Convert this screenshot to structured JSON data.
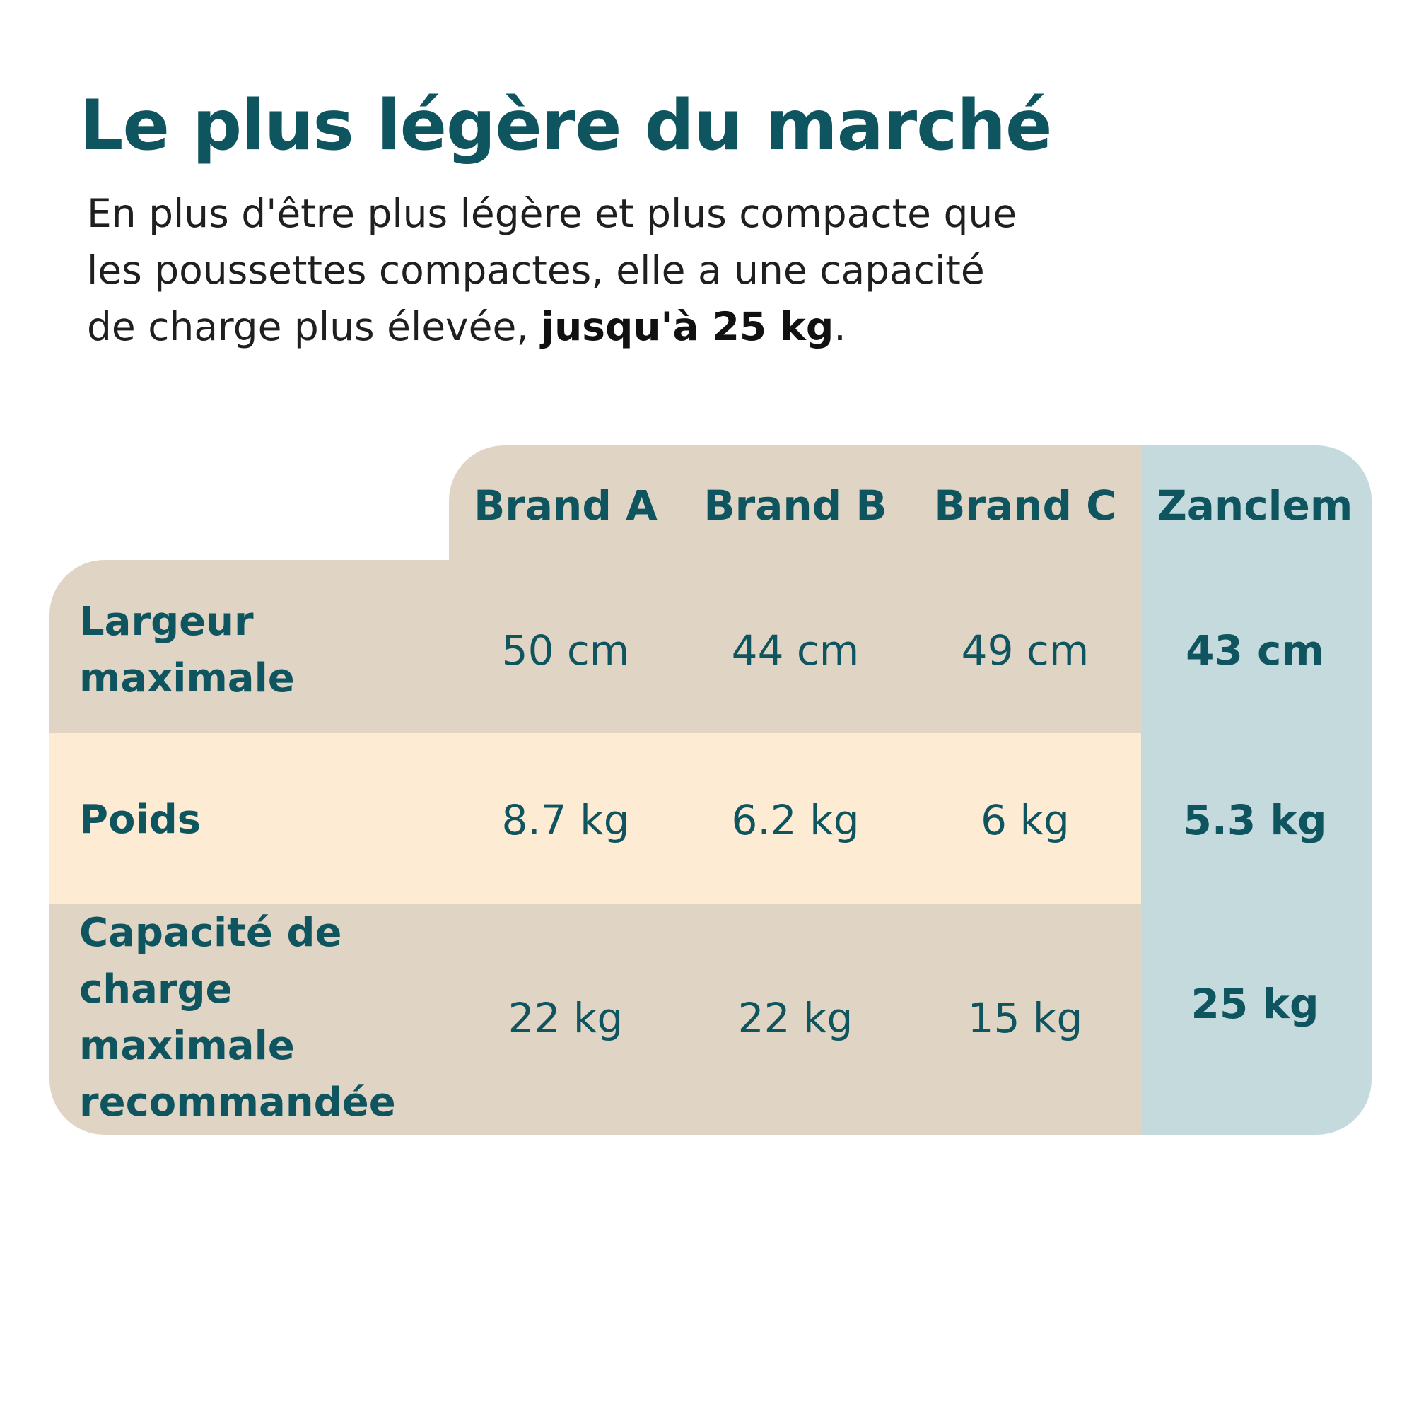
{
  "header": {
    "title": "Le plus légère du marché",
    "intro_line1": "En plus d'être plus légère et plus compacte que",
    "intro_line2": "les poussettes compactes, elle a une capacité",
    "intro_line3_start": "de charge plus élevée, ",
    "intro_line3_bold": "jusqu'à 25 kg",
    "intro_line3_end": "."
  },
  "colors": {
    "title": "#0f5560",
    "beige": "#e0d5c4",
    "cream": "#fdebd4",
    "highlight": "#c4dadc"
  },
  "chart_data": {
    "type": "table",
    "columns": [
      "Brand A",
      "Brand B",
      "Brand C",
      "Zanclem"
    ],
    "highlighted_column": "Zanclem",
    "rows": [
      {
        "label": "Largeur maximale",
        "values": [
          "50 cm",
          "44 cm",
          "49 cm",
          "43 cm"
        ]
      },
      {
        "label": "Poids",
        "values": [
          "8.7 kg",
          "6.2 kg",
          "6 kg",
          "5.3 kg"
        ]
      },
      {
        "label": "Capacité de charge maximale recommandée",
        "values": [
          "22 kg",
          "22 kg",
          "15 kg",
          "25 kg"
        ]
      }
    ]
  }
}
